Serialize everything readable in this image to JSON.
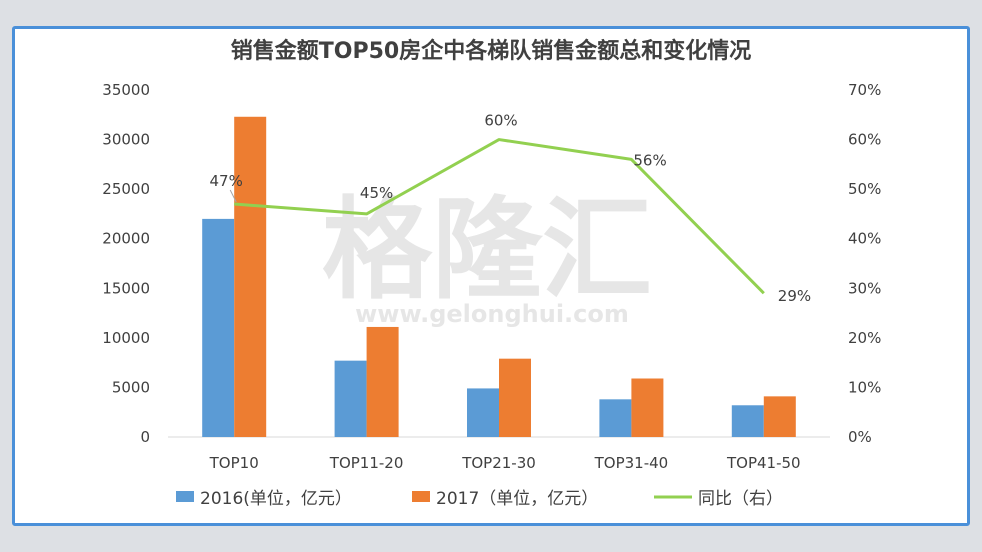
{
  "chart_data": {
    "type": "bar",
    "title": "销售金额TOP50房企中各梯队销售金额总和变化情况",
    "categories": [
      "TOP10",
      "TOP11-20",
      "TOP21-30",
      "TOP31-40",
      "TOP41-50"
    ],
    "series": [
      {
        "name": "2016(单位，亿元）",
        "type": "bar",
        "axis": "left",
        "color": "#5b9bd5",
        "values": [
          22000,
          7700,
          4900,
          3800,
          3200
        ]
      },
      {
        "name": "2017（单位，亿元）",
        "type": "bar",
        "axis": "left",
        "color": "#ed7d31",
        "values": [
          32300,
          11100,
          7900,
          5900,
          4100
        ]
      },
      {
        "name": "同比（右）",
        "type": "line",
        "axis": "right",
        "color": "#92d050",
        "values": [
          47,
          45,
          60,
          56,
          29
        ],
        "labels": [
          "47%",
          "45%",
          "60%",
          "56%",
          "29%"
        ]
      }
    ],
    "y_left": {
      "range": [
        0,
        35000
      ],
      "ticks": [
        "0",
        "5000",
        "10000",
        "15000",
        "20000",
        "25000",
        "30000",
        "35000"
      ]
    },
    "y_right": {
      "range": [
        0,
        70
      ],
      "ticks": [
        "0%",
        "10%",
        "20%",
        "30%",
        "40%",
        "50%",
        "60%",
        "70%"
      ]
    },
    "grid": false,
    "legend_position": "bottom"
  },
  "watermark": {
    "brand": "格隆汇",
    "url": "www.gelonghui.com"
  }
}
